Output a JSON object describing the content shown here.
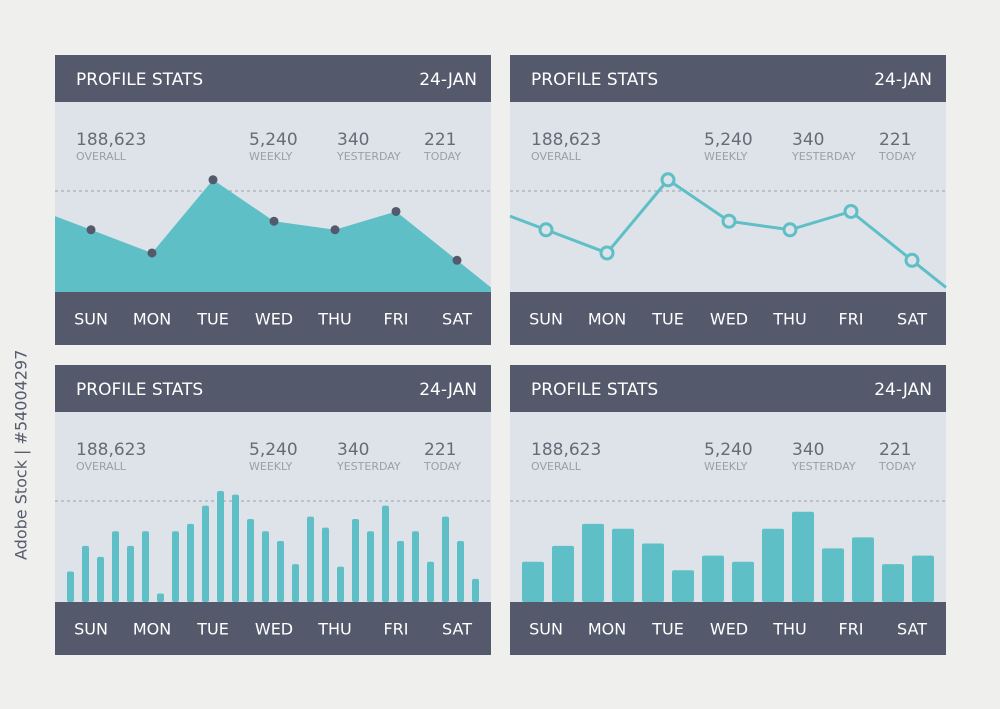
{
  "side_text": "Adobe Stock | #54004297",
  "chart_data": [
    {
      "type": "area",
      "title": "PROFILE STATS",
      "date": "24-JAN",
      "stats": [
        {
          "value": "188,623",
          "label": "OVERALL"
        },
        {
          "value": "5,240",
          "label": "WEEKLY"
        },
        {
          "value": "340",
          "label": "YESTERDAY"
        },
        {
          "value": "221",
          "label": "TODAY"
        }
      ],
      "categories": [
        "SUN",
        "MON",
        "TUE",
        "WED",
        "THU",
        "FRI",
        "SAT"
      ],
      "values": [
        51,
        32,
        92,
        58,
        51,
        66,
        26
      ],
      "ylim": [
        0,
        100
      ],
      "color": "#5fbfc6"
    },
    {
      "type": "line",
      "title": "PROFILE STATS",
      "date": "24-JAN",
      "stats": [
        {
          "value": "188,623",
          "label": "OVERALL"
        },
        {
          "value": "5,240",
          "label": "WEEKLY"
        },
        {
          "value": "340",
          "label": "YESTERDAY"
        },
        {
          "value": "221",
          "label": "TODAY"
        }
      ],
      "categories": [
        "SUN",
        "MON",
        "TUE",
        "WED",
        "THU",
        "FRI",
        "SAT"
      ],
      "values": [
        51,
        32,
        92,
        58,
        51,
        66,
        26
      ],
      "ylim": [
        0,
        100
      ],
      "color": "#5fbfc6"
    },
    {
      "type": "bar",
      "title": "PROFILE STATS",
      "date": "24-JAN",
      "stats": [
        {
          "value": "188,623",
          "label": "OVERALL"
        },
        {
          "value": "5,240",
          "label": "WEEKLY"
        },
        {
          "value": "340",
          "label": "YESTERDAY"
        },
        {
          "value": "221",
          "label": "TODAY"
        }
      ],
      "categories": [
        "SUN",
        "MON",
        "TUE",
        "WED",
        "THU",
        "FRI",
        "SAT"
      ],
      "values": [
        [
          25,
          46,
          37,
          58
        ],
        [
          46,
          58,
          7,
          58
        ],
        [
          64,
          79,
          91,
          88
        ],
        [
          68,
          58,
          50,
          31
        ],
        [
          70,
          61,
          29,
          68
        ],
        [
          58,
          79,
          50,
          58
        ],
        [
          33,
          70,
          50,
          19
        ]
      ],
      "ylim": [
        0,
        100
      ],
      "color": "#5fbfc6"
    },
    {
      "type": "bar",
      "title": "PROFILE STATS",
      "date": "24-JAN",
      "stats": [
        {
          "value": "188,623",
          "label": "OVERALL"
        },
        {
          "value": "5,240",
          "label": "WEEKLY"
        },
        {
          "value": "340",
          "label": "YESTERDAY"
        },
        {
          "value": "221",
          "label": "TODAY"
        }
      ],
      "categories": [
        "SUN",
        "MON",
        "TUE",
        "WED",
        "THU",
        "FRI",
        "SAT"
      ],
      "values": [
        [
          33,
          46
        ],
        [
          64,
          60
        ],
        [
          48,
          26
        ],
        [
          38,
          33
        ],
        [
          60,
          74
        ],
        [
          44,
          53
        ],
        [
          31,
          38
        ]
      ],
      "ylim": [
        0,
        100
      ],
      "color": "#5fbfc6"
    }
  ]
}
